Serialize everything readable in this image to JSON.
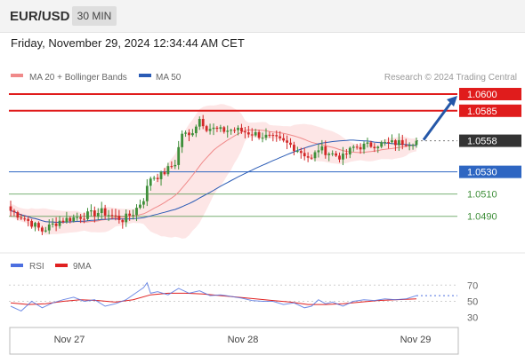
{
  "header": {
    "symbol": "EUR/USD",
    "interval": "30 MIN",
    "datetime": "Friday, November 29, 2024 12:34:44 AM CET"
  },
  "legend": {
    "ma20": "MA 20 + Bollinger Bands",
    "ma50": "MA 50",
    "copyright": "Research © 2024 Trading Central"
  },
  "rsi_legend": {
    "rsi": "RSI",
    "ma9": "9MA"
  },
  "colors": {
    "resistance": "#e01c1c",
    "support_strong": "#2e66c2",
    "support": "#3f8f3a",
    "current": "#333333",
    "arrow": "#2457a8",
    "bull": "#3f8f3a",
    "bear": "#d22828",
    "bollinger_fill": "#fde2e2",
    "ma20": "#f08a8a",
    "ma50": "#2a5bb5",
    "rsi": "#4c6fe0",
    "rsi_ma": "#e02020"
  },
  "chart_data": {
    "type": "candlestick",
    "yaxis_range": [
      1.0465,
      1.0608
    ],
    "xaxis_labels": [
      "Nov 27",
      "Nov 28",
      "Nov 29"
    ],
    "current_price": 1.0558,
    "levels": [
      {
        "value": 1.06,
        "label": "1.0600",
        "kind": "resistance"
      },
      {
        "value": 1.0585,
        "label": "1.0585",
        "kind": "resistance"
      },
      {
        "value": 1.0558,
        "label": "1.0558",
        "kind": "current"
      },
      {
        "value": 1.053,
        "label": "1.0530",
        "kind": "support_strong"
      },
      {
        "value": 1.051,
        "label": "1.0510",
        "kind": "support"
      },
      {
        "value": 1.049,
        "label": "1.0490",
        "kind": "support"
      }
    ],
    "close_path": [
      [
        0,
        1.0495
      ],
      [
        4,
        1.0488
      ],
      [
        9,
        1.0477
      ],
      [
        14,
        1.0486
      ],
      [
        20,
        1.049
      ],
      [
        26,
        1.0494
      ],
      [
        32,
        1.0487
      ],
      [
        35,
        1.0493
      ],
      [
        38,
        1.0506
      ],
      [
        40,
        1.0525
      ],
      [
        43,
        1.0527
      ],
      [
        47,
        1.0538
      ],
      [
        49,
        1.0565
      ],
      [
        51,
        1.0562
      ],
      [
        54,
        1.0578
      ],
      [
        56,
        1.057
      ],
      [
        60,
        1.0567
      ],
      [
        64,
        1.0568
      ],
      [
        70,
        1.0564
      ],
      [
        76,
        1.0559
      ],
      [
        80,
        1.0554
      ],
      [
        84,
        1.0546
      ],
      [
        86,
        1.0541
      ],
      [
        88,
        1.0551
      ],
      [
        92,
        1.0546
      ],
      [
        95,
        1.0543
      ],
      [
        98,
        1.0552
      ],
      [
        105,
        1.0555
      ],
      [
        110,
        1.0556
      ],
      [
        114,
        1.0557
      ],
      [
        116,
        1.0558
      ]
    ],
    "rsi": {
      "ticks": [
        70,
        50,
        30
      ],
      "range": [
        22,
        78
      ],
      "rsi_path": [
        [
          0,
          44
        ],
        [
          3,
          38
        ],
        [
          6,
          50
        ],
        [
          9,
          42
        ],
        [
          12,
          48
        ],
        [
          15,
          52
        ],
        [
          18,
          55
        ],
        [
          21,
          50
        ],
        [
          24,
          52
        ],
        [
          27,
          44
        ],
        [
          30,
          47
        ],
        [
          33,
          52
        ],
        [
          36,
          61
        ],
        [
          38,
          67
        ],
        [
          39,
          73
        ],
        [
          40,
          60
        ],
        [
          42,
          62
        ],
        [
          45,
          58
        ],
        [
          48,
          66
        ],
        [
          51,
          60
        ],
        [
          54,
          63
        ],
        [
          57,
          57
        ],
        [
          60,
          58
        ],
        [
          63,
          56
        ],
        [
          66,
          54
        ],
        [
          69,
          51
        ],
        [
          72,
          50
        ],
        [
          75,
          50
        ],
        [
          78,
          46
        ],
        [
          81,
          48
        ],
        [
          84,
          42
        ],
        [
          86,
          44
        ],
        [
          88,
          52
        ],
        [
          90,
          47
        ],
        [
          92,
          49
        ],
        [
          95,
          44
        ],
        [
          98,
          50
        ],
        [
          101,
          52
        ],
        [
          104,
          51
        ],
        [
          107,
          53
        ],
        [
          110,
          52
        ],
        [
          113,
          53
        ],
        [
          116,
          57
        ]
      ],
      "ma_path": [
        [
          0,
          48
        ],
        [
          5,
          46
        ],
        [
          10,
          47
        ],
        [
          15,
          50
        ],
        [
          20,
          52
        ],
        [
          25,
          51
        ],
        [
          30,
          49
        ],
        [
          35,
          52
        ],
        [
          40,
          58
        ],
        [
          45,
          60
        ],
        [
          50,
          60
        ],
        [
          55,
          59
        ],
        [
          60,
          57
        ],
        [
          65,
          55
        ],
        [
          70,
          53
        ],
        [
          75,
          51
        ],
        [
          80,
          49
        ],
        [
          85,
          46
        ],
        [
          90,
          46
        ],
        [
          95,
          47
        ],
        [
          100,
          49
        ],
        [
          105,
          51
        ],
        [
          110,
          52
        ],
        [
          116,
          53
        ]
      ]
    }
  }
}
